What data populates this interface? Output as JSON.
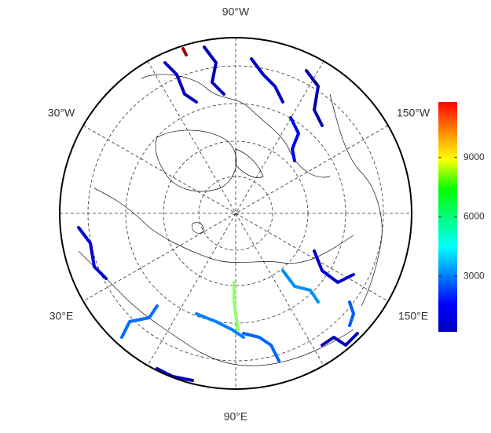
{
  "chart_data": {
    "type": "map",
    "labels": [
      "90°W",
      "30°W",
      "150°W",
      "30°E",
      "150°E",
      "90°E"
    ],
    "colorbar": {
      "lim": [
        200,
        11800
      ],
      "ticks": [
        3000,
        6000,
        9000
      ]
    },
    "rivers": [
      {
        "value": 900
      },
      {
        "value": 800
      },
      {
        "value": 1000
      },
      {
        "value": 700
      },
      {
        "value": 1200
      },
      {
        "value": 2900
      },
      {
        "value": 3100
      },
      {
        "value": 2800
      },
      {
        "value": 900
      },
      {
        "value": 1100
      },
      {
        "value": 3300
      },
      {
        "value": 6200
      },
      {
        "value": 11500
      },
      {
        "value": 800
      },
      {
        "value": 1500
      },
      {
        "value": 2700
      }
    ]
  }
}
